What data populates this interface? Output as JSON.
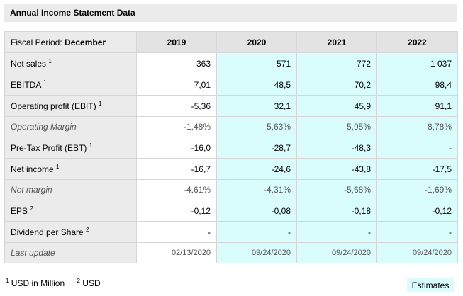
{
  "title": "Annual Income Statement Data",
  "fiscal_period_label": "Fiscal Period:",
  "fiscal_period_value": "December",
  "years": [
    "2019",
    "2020",
    "2021",
    "2022"
  ],
  "rows": [
    {
      "label": "Net sales",
      "sup": "1",
      "italic": false,
      "values": [
        "363",
        "571",
        "772",
        "1 037"
      ]
    },
    {
      "label": "EBITDA",
      "sup": "1",
      "italic": false,
      "values": [
        "7,01",
        "48,5",
        "70,2",
        "98,4"
      ]
    },
    {
      "label": "Operating profit (EBIT)",
      "sup": "1",
      "italic": false,
      "values": [
        "-5,36",
        "32,1",
        "45,9",
        "91,1"
      ]
    },
    {
      "label": "Operating Margin",
      "sup": "",
      "italic": true,
      "values": [
        "-1,48%",
        "5,63%",
        "5,95%",
        "8,78%"
      ]
    },
    {
      "label": "Pre-Tax Profit (EBT)",
      "sup": "1",
      "italic": false,
      "values": [
        "-16,0",
        "-28,7",
        "-48,3",
        "-"
      ]
    },
    {
      "label": "Net income",
      "sup": "1",
      "italic": false,
      "values": [
        "-16,7",
        "-24,6",
        "-43,8",
        "-17,5"
      ]
    },
    {
      "label": "Net margin",
      "sup": "",
      "italic": true,
      "values": [
        "-4,61%",
        "-4,31%",
        "-5,68%",
        "-1,69%"
      ]
    },
    {
      "label": "EPS",
      "sup": "2",
      "italic": false,
      "values": [
        "-0,12",
        "-0,08",
        "-0,18",
        "-0,12"
      ]
    },
    {
      "label": "Dividend per Share",
      "sup": "2",
      "italic": false,
      "values": [
        "-",
        "-",
        "-",
        "-"
      ]
    },
    {
      "label": "Last update",
      "sup": "",
      "italic": true,
      "values": [
        "02/13/2020",
        "09/24/2020",
        "09/24/2020",
        "09/24/2020"
      ]
    }
  ],
  "footnotes": [
    {
      "num": "1",
      "text": "USD in Million"
    },
    {
      "num": "2",
      "text": "USD"
    }
  ],
  "estimates_label": "Estimates",
  "colors": {
    "estimate_bg": "#d9fcfc",
    "header_bg": "#ebebeb",
    "border": "#d6d6d6"
  }
}
